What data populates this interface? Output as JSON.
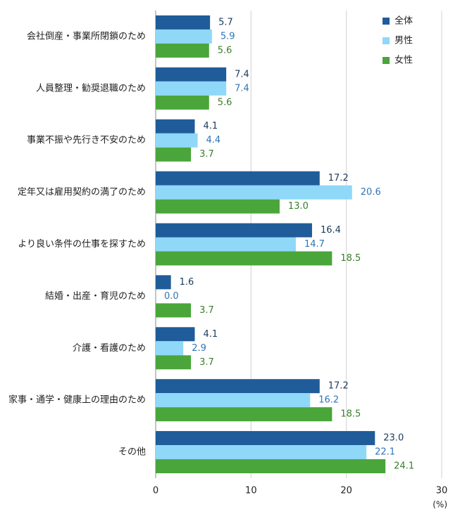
{
  "chart_data": {
    "type": "barh",
    "categories": [
      "会社倒産・事業所閉鎖のため",
      "人員整理・勧奨退職のため",
      "事業不振や先行き不安のため",
      "定年又は雇用契約の満了のため",
      "より良い条件の仕事を探すため",
      "結婚・出産・育児のため",
      "介護・看護のため",
      "家事・通学・健康上の理由のため",
      "その他"
    ],
    "series": [
      {
        "name": "全体",
        "color": "#1f5c99",
        "label_color": "#1b3a5c",
        "values": [
          5.7,
          7.4,
          4.1,
          17.2,
          16.4,
          1.6,
          4.1,
          17.2,
          23.0
        ],
        "value_labels": [
          "5.7",
          "7.4",
          "4.1",
          "17.2",
          "16.4",
          "1.6",
          "4.1",
          "17.2",
          "23.0"
        ]
      },
      {
        "name": "男性",
        "color": "#8fd8f8",
        "label_color": "#2e75b6",
        "values": [
          5.9,
          7.4,
          4.4,
          20.6,
          14.7,
          0.0,
          2.9,
          16.2,
          22.1
        ],
        "value_labels": [
          "5.9",
          "7.4",
          "4.4",
          "20.6",
          "14.7",
          "0.0",
          "2.9",
          "16.2",
          "22.1"
        ]
      },
      {
        "name": "女性",
        "color": "#4aa53a",
        "label_color": "#3a7d2a",
        "values": [
          5.6,
          5.6,
          3.7,
          13.0,
          18.5,
          3.7,
          3.7,
          18.5,
          24.1
        ],
        "value_labels": [
          "5.6",
          "5.6",
          "3.7",
          "13.0",
          "18.5",
          "3.7",
          "3.7",
          "18.5",
          "24.1"
        ]
      }
    ],
    "xlim": [
      0,
      30
    ],
    "xticks": [
      0,
      10,
      20,
      30
    ],
    "x_unit": "(%)",
    "grid": true,
    "legend": "top-right"
  }
}
